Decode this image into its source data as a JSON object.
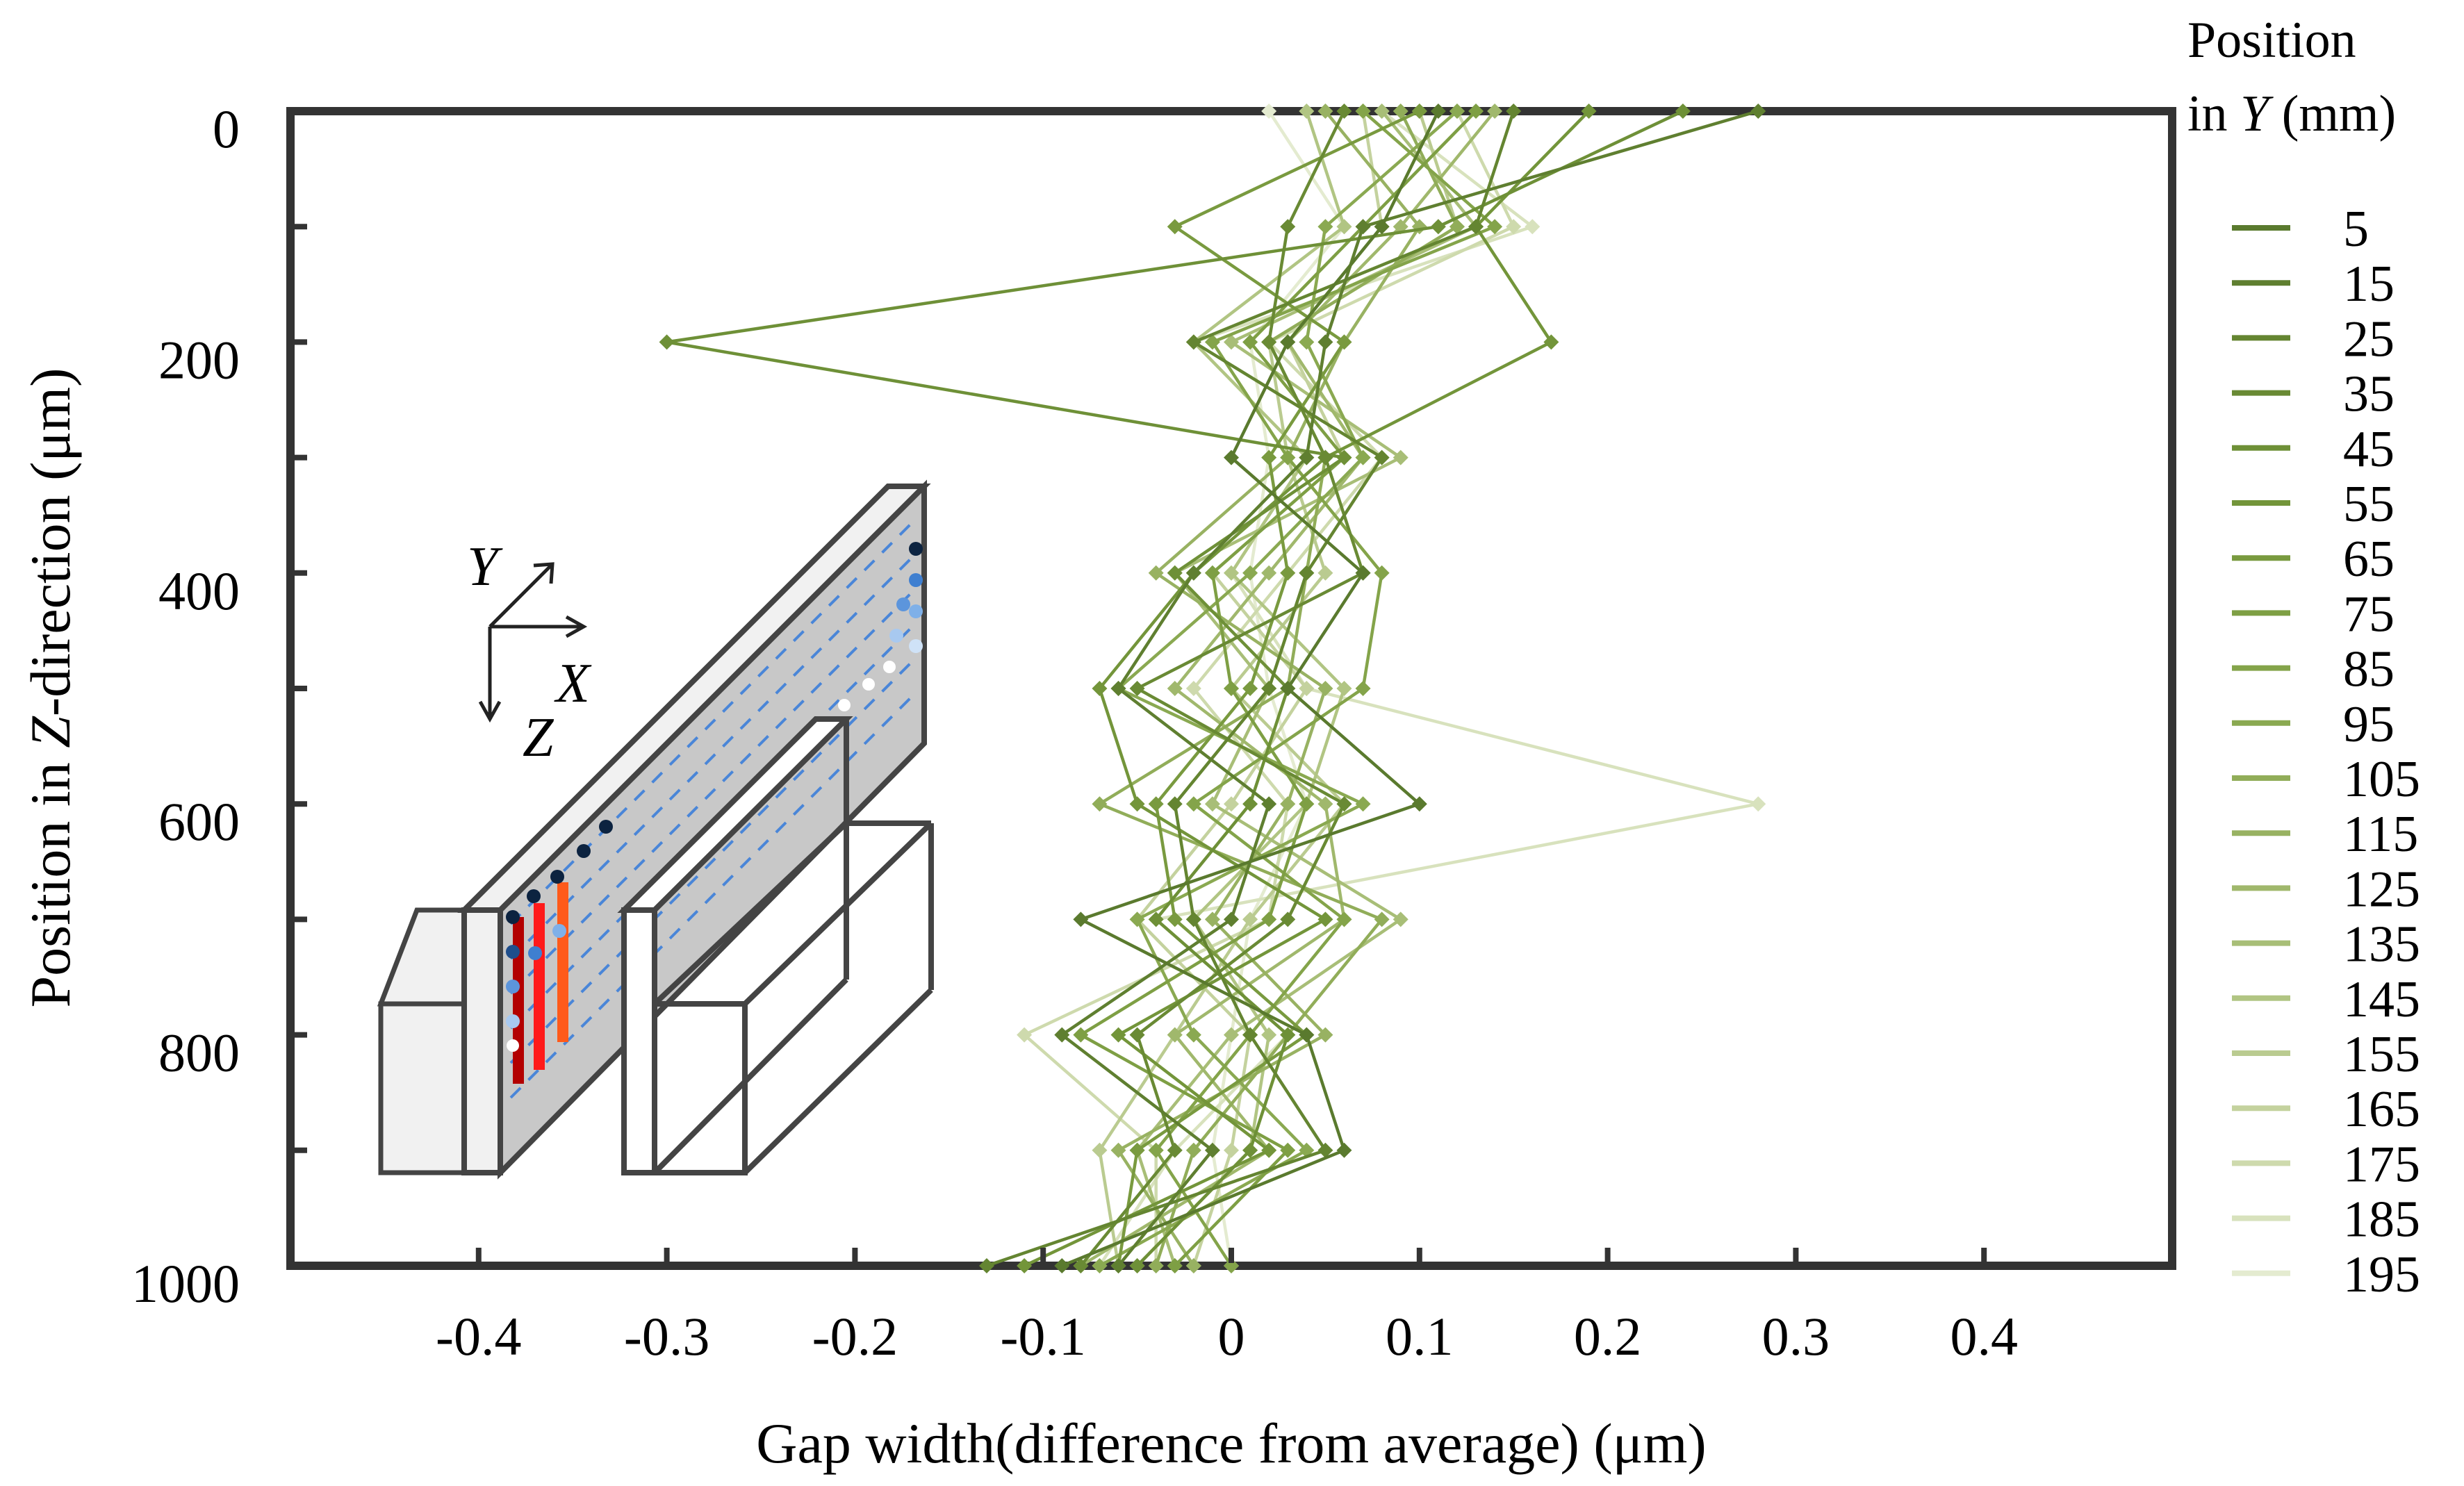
{
  "chart_data": {
    "type": "line",
    "orientation": "vertical-profile",
    "xlabel": "Gap width(difference from average) (μm)",
    "ylabel_prefix": "Position in ",
    "ylabel_var": "Z",
    "ylabel_suffix": "-direction (μm)",
    "xlim": [
      -0.5,
      0.5
    ],
    "ylim": [
      0,
      1000
    ],
    "y_inverted": true,
    "xticks": [
      -0.4,
      -0.3,
      -0.2,
      -0.1,
      0,
      0.1,
      0.2,
      0.3,
      0.4
    ],
    "xtick_labels": [
      "-0.4",
      "-0.3",
      "-0.2",
      "-0.1",
      "0",
      "0.1",
      "0.2",
      "0.3",
      "0.4"
    ],
    "yticks": [
      0,
      200,
      400,
      600,
      800,
      1000
    ],
    "ytick_labels": [
      "0",
      "200",
      "400",
      "600",
      "800",
      "1000"
    ],
    "z_positions": [
      0,
      100,
      200,
      300,
      400,
      500,
      600,
      700,
      800,
      900,
      1000
    ],
    "legend": {
      "title_line1": "Position",
      "title_line2_prefix": "in ",
      "title_line2_var": "Y",
      "title_line2_suffix": " (mm)",
      "placement": "right"
    },
    "inset": {
      "axis_labels": [
        "Y",
        "X",
        "Z"
      ]
    },
    "series": [
      {
        "name": "5",
        "color": "#5a7a2e",
        "values": [
          0.11,
          0.08,
          0.03,
          0.0,
          0.07,
          0.03,
          0.1,
          -0.08,
          0.04,
          0.06,
          -0.09
        ]
      },
      {
        "name": "15",
        "color": "#5f7f30",
        "values": [
          0.28,
          0.07,
          0.05,
          0.04,
          -0.02,
          -0.06,
          0.02,
          0.0,
          -0.09,
          -0.01,
          -0.06
        ]
      },
      {
        "name": "25",
        "color": "#648531",
        "values": [
          0.15,
          0.13,
          -0.02,
          0.08,
          0.04,
          0.02,
          -0.03,
          -0.02,
          0.01,
          0.05,
          -0.13
        ]
      },
      {
        "name": "35",
        "color": "#698a34",
        "values": [
          0.06,
          0.03,
          0.02,
          0.05,
          0.07,
          -0.05,
          0.06,
          0.03,
          -0.05,
          -0.03,
          -0.08
        ]
      },
      {
        "name": "45",
        "color": "#6e9037",
        "values": [
          0.24,
          0.11,
          -0.3,
          0.06,
          -0.03,
          0.03,
          0.01,
          -0.04,
          0.03,
          0.01,
          -0.05
        ]
      },
      {
        "name": "55",
        "color": "#73953a",
        "values": [
          0.19,
          0.13,
          0.17,
          0.05,
          -0.02,
          -0.07,
          -0.05,
          0.05,
          -0.06,
          0.02,
          -0.11
        ]
      },
      {
        "name": "65",
        "color": "#799a3f",
        "values": [
          0.1,
          -0.03,
          0.06,
          0.02,
          0.03,
          0.01,
          -0.04,
          -0.03,
          0.04,
          -0.05,
          -0.06
        ]
      },
      {
        "name": "75",
        "color": "#7e9f44",
        "values": [
          0.13,
          0.07,
          0.01,
          0.06,
          -0.01,
          0.0,
          0.04,
          0.02,
          -0.08,
          0.03,
          -0.03
        ]
      },
      {
        "name": "85",
        "color": "#84a44a",
        "values": [
          0.07,
          0.14,
          -0.01,
          0.03,
          0.08,
          0.07,
          -0.02,
          0.06,
          0.01,
          -0.04,
          0.0
        ]
      },
      {
        "name": "95",
        "color": "#8aa951",
        "values": [
          0.12,
          0.05,
          0.04,
          0.07,
          0.01,
          -0.06,
          0.07,
          -0.05,
          -0.02,
          0.04,
          -0.07
        ]
      },
      {
        "name": "105",
        "color": "#91ad59",
        "values": [
          0.09,
          0.12,
          0.02,
          0.05,
          0.04,
          0.03,
          -0.07,
          0.08,
          0.03,
          -0.02,
          -0.04
        ]
      },
      {
        "name": "115",
        "color": "#98b262",
        "values": [
          0.05,
          0.1,
          0.06,
          0.03,
          -0.04,
          0.05,
          0.03,
          -0.01,
          0.05,
          -0.06,
          -0.02
        ]
      },
      {
        "name": "125",
        "color": "#a0b86c",
        "values": [
          0.14,
          0.09,
          0.03,
          0.07,
          0.02,
          -0.03,
          0.05,
          0.06,
          -0.03,
          0.02,
          -0.08
        ]
      },
      {
        "name": "135",
        "color": "#a8be77",
        "values": [
          0.08,
          0.13,
          0.0,
          0.09,
          -0.03,
          0.02,
          -0.01,
          0.09,
          0.0,
          -0.05,
          -0.03
        ]
      },
      {
        "name": "145",
        "color": "#b1c583",
        "values": [
          0.04,
          0.06,
          -0.02,
          0.04,
          0.0,
          0.06,
          0.04,
          -0.02,
          0.02,
          0.01,
          -0.05
        ]
      },
      {
        "name": "155",
        "color": "#bacb90",
        "values": [
          0.1,
          0.12,
          0.02,
          0.03,
          0.05,
          0.0,
          0.06,
          0.01,
          -0.03,
          -0.07,
          -0.06
        ]
      },
      {
        "name": "165",
        "color": "#c4d29e",
        "values": [
          0.07,
          0.08,
          0.03,
          0.06,
          -0.01,
          0.04,
          0.0,
          -0.05,
          0.01,
          0.0,
          -0.02
        ]
      },
      {
        "name": "175",
        "color": "#cedaad",
        "values": [
          0.12,
          0.15,
          0.02,
          0.08,
          0.03,
          -0.02,
          0.03,
          0.02,
          -0.11,
          -0.04,
          -0.04
        ]
      },
      {
        "name": "185",
        "color": "#d8e2bd",
        "values": [
          0.08,
          0.16,
          -0.02,
          0.04,
          0.0,
          0.04,
          0.28,
          -0.04,
          0.03,
          -0.03,
          -0.07
        ]
      },
      {
        "name": "195",
        "color": "#e4ebd0",
        "values": [
          0.02,
          0.06,
          0.01,
          0.02,
          0.01,
          0.02,
          0.04,
          0.01,
          0.0,
          -0.01,
          0.0
        ]
      }
    ]
  }
}
